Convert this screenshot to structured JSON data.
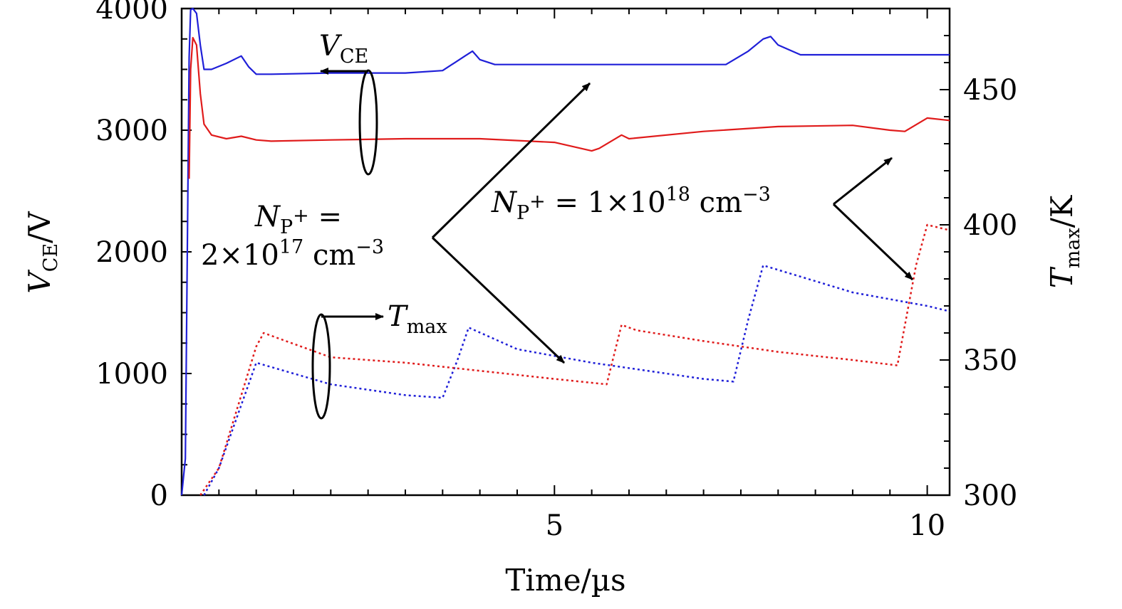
{
  "chart_data": {
    "type": "line",
    "title": "",
    "xlabel": "Time/µs",
    "ylabel_left": {
      "base": "V",
      "sub": "CE",
      "unit": "/V"
    },
    "ylabel_right": {
      "base": "T",
      "sub": "max",
      "unit": "/K"
    },
    "xlim": [
      0,
      10.3
    ],
    "ylim_left": [
      0,
      4000
    ],
    "ylim_right": [
      300,
      480
    ],
    "x_ticks": [
      5,
      10
    ],
    "x_tick_labels": [
      "5",
      "10"
    ],
    "y_left_ticks": [
      0,
      1000,
      2000,
      3000,
      4000
    ],
    "y_left_tick_labels": [
      "0",
      "1000",
      "2000",
      "3000",
      "4000"
    ],
    "y_right_ticks": [
      300,
      350,
      400,
      450
    ],
    "y_right_tick_labels": [
      "300",
      "350",
      "400",
      "450"
    ],
    "grid": false,
    "colors": {
      "blue": "#1f1fd8",
      "red": "#e01b1b",
      "black": "#000000"
    },
    "series": [
      {
        "name": "V_CE, N_P+ = 1e18 cm^-3",
        "axis": "left",
        "style": "solid",
        "color": "#1f1fd8",
        "x": [
          0,
          0.05,
          0.1,
          0.12,
          0.15,
          0.2,
          0.25,
          0.3,
          0.4,
          0.6,
          0.8,
          0.9,
          1.0,
          1.2,
          2.0,
          3.0,
          3.5,
          3.8,
          3.9,
          4.0,
          4.2,
          6.0,
          7.3,
          7.6,
          7.8,
          7.9,
          8.0,
          8.3,
          10.3
        ],
        "y": [
          0,
          300,
          3600,
          3990,
          4000,
          3960,
          3700,
          3500,
          3500,
          3550,
          3610,
          3520,
          3460,
          3460,
          3470,
          3470,
          3490,
          3610,
          3650,
          3580,
          3540,
          3540,
          3540,
          3650,
          3750,
          3770,
          3700,
          3620,
          3620
        ]
      },
      {
        "name": "V_CE, N_P+ = 2e17 cm^-3",
        "axis": "left",
        "style": "solid",
        "color": "#e01b1b",
        "x": [
          0.1,
          0.12,
          0.15,
          0.2,
          0.25,
          0.3,
          0.4,
          0.6,
          0.8,
          1.0,
          1.2,
          2.0,
          3.0,
          4.0,
          5.0,
          5.5,
          5.6,
          5.9,
          6.0,
          7.0,
          8.0,
          9.0,
          9.5,
          9.7,
          10.0,
          10.3
        ],
        "y": [
          2600,
          3500,
          3760,
          3700,
          3300,
          3050,
          2960,
          2930,
          2950,
          2920,
          2910,
          2920,
          2930,
          2930,
          2900,
          2830,
          2850,
          2960,
          2930,
          2990,
          3030,
          3040,
          3000,
          2990,
          3100,
          3080
        ]
      },
      {
        "name": "T_max, N_P+ = 1e18 cm^-3",
        "axis": "right",
        "style": "dotted",
        "color": "#1f1fd8",
        "x": [
          0.3,
          0.5,
          1.0,
          2.0,
          3.0,
          3.5,
          3.7,
          3.85,
          4.5,
          5.5,
          7.0,
          7.4,
          7.6,
          7.8,
          9.0,
          10.0,
          10.3
        ],
        "y": [
          300,
          310,
          349,
          341,
          337,
          336,
          350,
          362,
          354,
          349,
          343,
          342,
          365,
          385,
          375,
          370,
          368
        ]
      },
      {
        "name": "T_max, N_P+ = 2e17 cm^-3",
        "axis": "right",
        "style": "dotted",
        "color": "#e01b1b",
        "x": [
          0.25,
          0.5,
          1.0,
          1.1,
          2.0,
          3.0,
          4.0,
          5.0,
          5.7,
          5.9,
          6.1,
          7.0,
          8.0,
          9.0,
          9.6,
          9.85,
          10.0,
          10.3
        ],
        "y": [
          300,
          310,
          355,
          360,
          351,
          349,
          346,
          343,
          341,
          363,
          361,
          357,
          353,
          350,
          348,
          385,
          400,
          398
        ]
      }
    ],
    "annotations": {
      "vce_label": {
        "base": "V",
        "sub": "CE"
      },
      "tmax_label": {
        "base": "T",
        "sub": "max"
      },
      "np_left": {
        "lead": "N",
        "sub": "P",
        "sup": "+",
        "eq": " =",
        "coef": "2×10",
        "exp": "17",
        "unit": " cm",
        "unit_exp": "−3"
      },
      "np_right": {
        "lead": "N",
        "sub": "P",
        "sup": "+",
        "eq": " = 1×10",
        "exp": "18",
        "unit": " cm",
        "unit_exp": "−3"
      }
    }
  }
}
